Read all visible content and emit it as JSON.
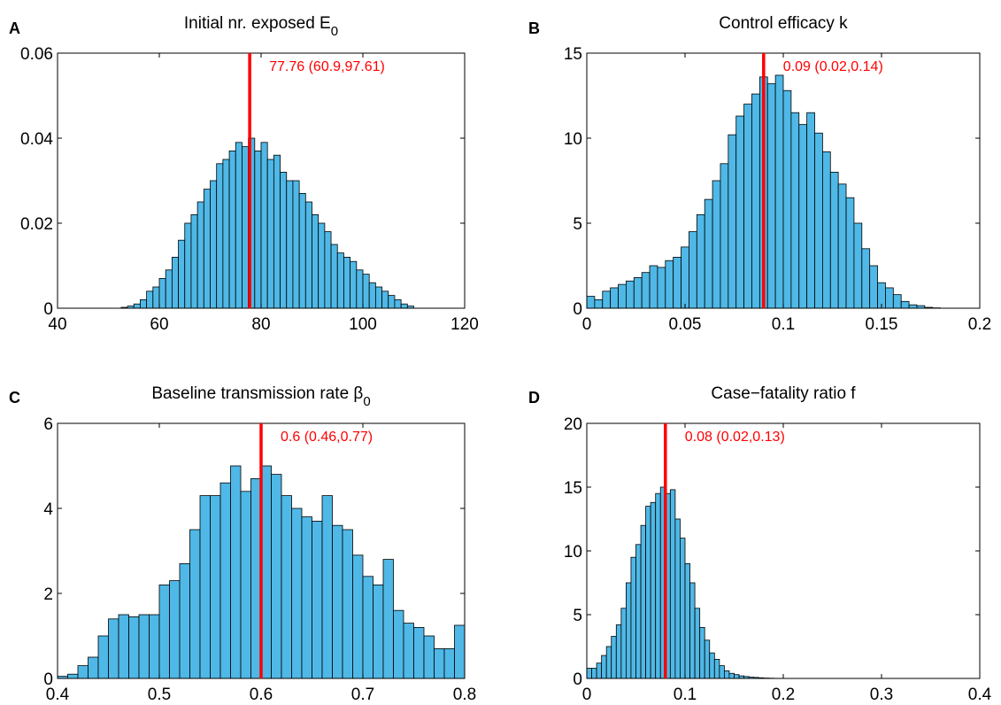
{
  "chart_data": [
    {
      "type": "histogram",
      "panel_label": "A",
      "title": "Initial nr. exposed E",
      "title_subscript": "0",
      "annotation": "77.76 (60.9,97.61)",
      "marker_line": {
        "value": 77.76,
        "color": "#ff0000"
      },
      "color": "#4fb8e6",
      "bins": [
        52.5,
        53.75,
        55,
        56.25,
        57.5,
        58.75,
        60,
        61.25,
        62.5,
        63.75,
        65,
        66.25,
        67.5,
        68.75,
        70,
        71.25,
        72.5,
        73.75,
        75,
        76.25,
        77.5,
        78.75,
        80,
        81.25,
        82.5,
        83.75,
        85,
        86.25,
        87.5,
        88.75,
        90,
        91.25,
        92.5,
        93.75,
        95,
        96.25,
        97.5,
        98.75,
        100,
        101.25,
        102.5,
        103.75,
        105,
        106.25,
        107.5,
        108.75,
        110
      ],
      "values": [
        0.0002,
        0.0005,
        0.001,
        0.002,
        0.004,
        0.005,
        0.007,
        0.009,
        0.012,
        0.016,
        0.02,
        0.022,
        0.025,
        0.028,
        0.03,
        0.034,
        0.035,
        0.037,
        0.039,
        0.038,
        0.04,
        0.037,
        0.039,
        0.035,
        0.036,
        0.032,
        0.03,
        0.03,
        0.027,
        0.025,
        0.022,
        0.02,
        0.018,
        0.015,
        0.013,
        0.012,
        0.011,
        0.009,
        0.008,
        0.006,
        0.005,
        0.004,
        0.003,
        0.002,
        0.001,
        0.0005
      ],
      "xlim": [
        40,
        120
      ],
      "xticks": [
        40,
        60,
        80,
        100,
        120
      ],
      "ylim": [
        0,
        0.06
      ],
      "yticks": [
        0,
        0.02,
        0.04,
        0.06
      ]
    },
    {
      "type": "histogram",
      "panel_label": "B",
      "title": "Control efficacy k",
      "annotation": "0.09 (0.02,0.14)",
      "marker_line": {
        "value": 0.09,
        "color": "#ff0000"
      },
      "color": "#4fb8e6",
      "bins": [
        0,
        0.004,
        0.008,
        0.012,
        0.016,
        0.02,
        0.024,
        0.028,
        0.032,
        0.036,
        0.04,
        0.044,
        0.048,
        0.052,
        0.056,
        0.06,
        0.064,
        0.068,
        0.072,
        0.076,
        0.08,
        0.084,
        0.088,
        0.092,
        0.096,
        0.1,
        0.104,
        0.108,
        0.112,
        0.116,
        0.12,
        0.124,
        0.128,
        0.132,
        0.136,
        0.14,
        0.144,
        0.148,
        0.152,
        0.156,
        0.16,
        0.164,
        0.168,
        0.172,
        0.176,
        0.18
      ],
      "values": [
        0.7,
        0.5,
        1.0,
        1.2,
        1.4,
        1.6,
        1.8,
        2.1,
        2.5,
        2.4,
        2.8,
        3.0,
        3.6,
        4.5,
        5.5,
        6.4,
        7.5,
        8.5,
        10.2,
        11.3,
        12.0,
        12.6,
        13.6,
        13.2,
        13.7,
        12.8,
        11.5,
        10.8,
        11.5,
        10.3,
        9.2,
        8.0,
        7.3,
        6.5,
        5.0,
        3.5,
        2.5,
        1.5,
        1.2,
        0.8,
        0.4,
        0.2,
        0.15,
        0.05,
        0.02
      ],
      "xlim": [
        0,
        0.2
      ],
      "xticks": [
        0,
        0.05,
        0.1,
        0.15,
        0.2
      ],
      "ylim": [
        0,
        15
      ],
      "yticks": [
        0,
        5,
        10,
        15
      ]
    },
    {
      "type": "histogram",
      "panel_label": "C",
      "title": "Baseline transmission rate β",
      "title_subscript": "0",
      "annotation": "0.6 (0.46,0.77)",
      "marker_line": {
        "value": 0.6,
        "color": "#ff0000"
      },
      "color": "#4fb8e6",
      "bins": [
        0.4,
        0.41,
        0.42,
        0.43,
        0.44,
        0.45,
        0.46,
        0.47,
        0.48,
        0.49,
        0.5,
        0.51,
        0.52,
        0.53,
        0.54,
        0.55,
        0.56,
        0.57,
        0.58,
        0.59,
        0.6,
        0.61,
        0.62,
        0.63,
        0.64,
        0.65,
        0.66,
        0.67,
        0.68,
        0.69,
        0.7,
        0.71,
        0.72,
        0.73,
        0.74,
        0.75,
        0.76,
        0.77,
        0.78,
        0.79,
        0.8
      ],
      "values": [
        0.05,
        0.1,
        0.3,
        0.5,
        1.0,
        1.4,
        1.5,
        1.45,
        1.5,
        1.5,
        2.2,
        2.3,
        2.7,
        3.5,
        4.3,
        4.3,
        4.6,
        5.0,
        4.4,
        4.7,
        5.0,
        4.8,
        4.3,
        4.0,
        3.8,
        3.7,
        4.3,
        3.6,
        3.5,
        2.9,
        2.4,
        2.2,
        2.8,
        1.6,
        1.3,
        1.2,
        1.0,
        0.7,
        0.7,
        1.25
      ],
      "xlim": [
        0.4,
        0.8
      ],
      "xticks": [
        0.4,
        0.5,
        0.6,
        0.7,
        0.8
      ],
      "ylim": [
        0,
        6
      ],
      "yticks": [
        0,
        2,
        4,
        6
      ]
    },
    {
      "type": "histogram",
      "panel_label": "D",
      "title": "Case−fatality ratio f",
      "annotation": "0.08 (0.02,0.13)",
      "marker_line": {
        "value": 0.08,
        "color": "#ff0000"
      },
      "color": "#4fb8e6",
      "bins": [
        0,
        0.005,
        0.01,
        0.015,
        0.02,
        0.025,
        0.03,
        0.035,
        0.04,
        0.045,
        0.05,
        0.055,
        0.06,
        0.065,
        0.07,
        0.075,
        0.08,
        0.085,
        0.09,
        0.095,
        0.1,
        0.105,
        0.11,
        0.115,
        0.12,
        0.125,
        0.13,
        0.135,
        0.14,
        0.145,
        0.15,
        0.155,
        0.16,
        0.165,
        0.17,
        0.175,
        0.18,
        0.185,
        0.19,
        0.195,
        0.2
      ],
      "values": [
        0.8,
        0.8,
        1.2,
        1.8,
        2.5,
        3.3,
        4.2,
        5.5,
        7.5,
        9.5,
        10.5,
        12,
        13.5,
        13.8,
        14.5,
        15,
        14.5,
        14.8,
        12.5,
        11,
        9,
        7.5,
        5.5,
        4,
        3,
        2,
        1.5,
        1,
        0.6,
        0.4,
        0.3,
        0.2,
        0.15,
        0.1,
        0.08,
        0.05,
        0.03,
        0.02,
        0.01,
        0.005
      ],
      "xlim": [
        0,
        0.4
      ],
      "xticks": [
        0,
        0.1,
        0.2,
        0.3,
        0.4
      ],
      "ylim": [
        0,
        20
      ],
      "yticks": [
        0,
        5,
        10,
        15,
        20
      ]
    }
  ]
}
